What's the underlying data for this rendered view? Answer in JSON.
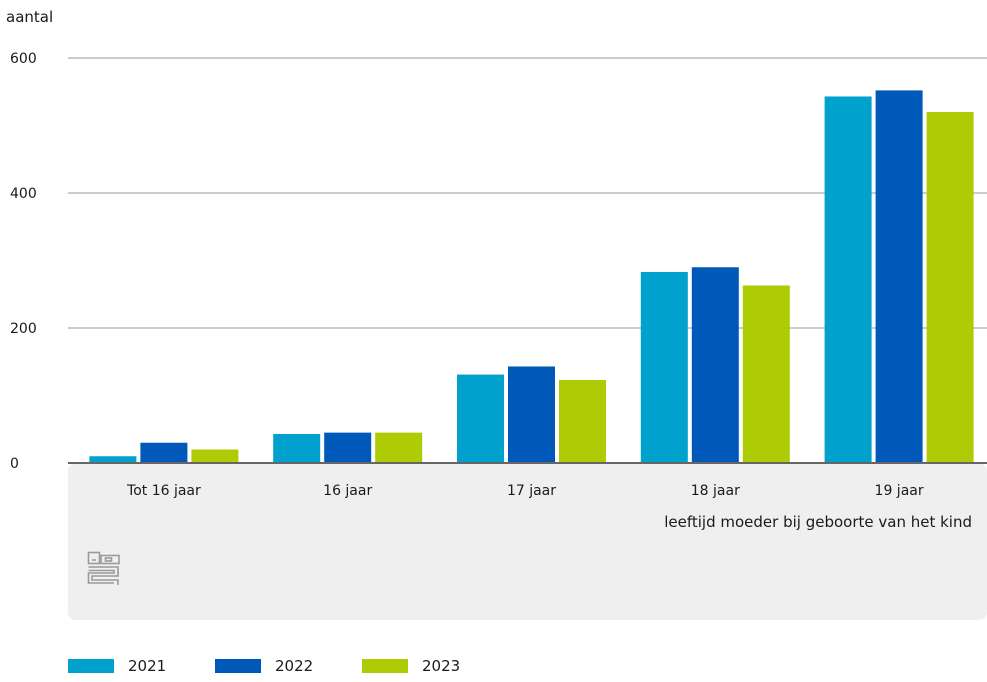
{
  "chart_data": {
    "type": "bar",
    "ylabel": "aantal",
    "xlabel": "leeftijd moeder bij geboorte van het kind",
    "categories": [
      "Tot 16 jaar",
      "16 jaar",
      "17 jaar",
      "18 jaar",
      "19 jaar"
    ],
    "series": [
      {
        "name": "2021",
        "color": "#00a1cd",
        "values": [
          10,
          43,
          131,
          283,
          543
        ]
      },
      {
        "name": "2022",
        "color": "#0058b8",
        "values": [
          30,
          45,
          143,
          290,
          552
        ]
      },
      {
        "name": "2023",
        "color": "#afcb05",
        "values": [
          20,
          45,
          123,
          263,
          520
        ]
      }
    ],
    "ylim": [
      0,
      600
    ],
    "yticks": [
      "0",
      "200",
      "400",
      "600"
    ],
    "ytick_values": [
      0,
      200,
      400,
      600
    ],
    "grid": true,
    "legend_position": "bottom-left"
  },
  "logo": {
    "icon": "cbs-logo-icon"
  }
}
